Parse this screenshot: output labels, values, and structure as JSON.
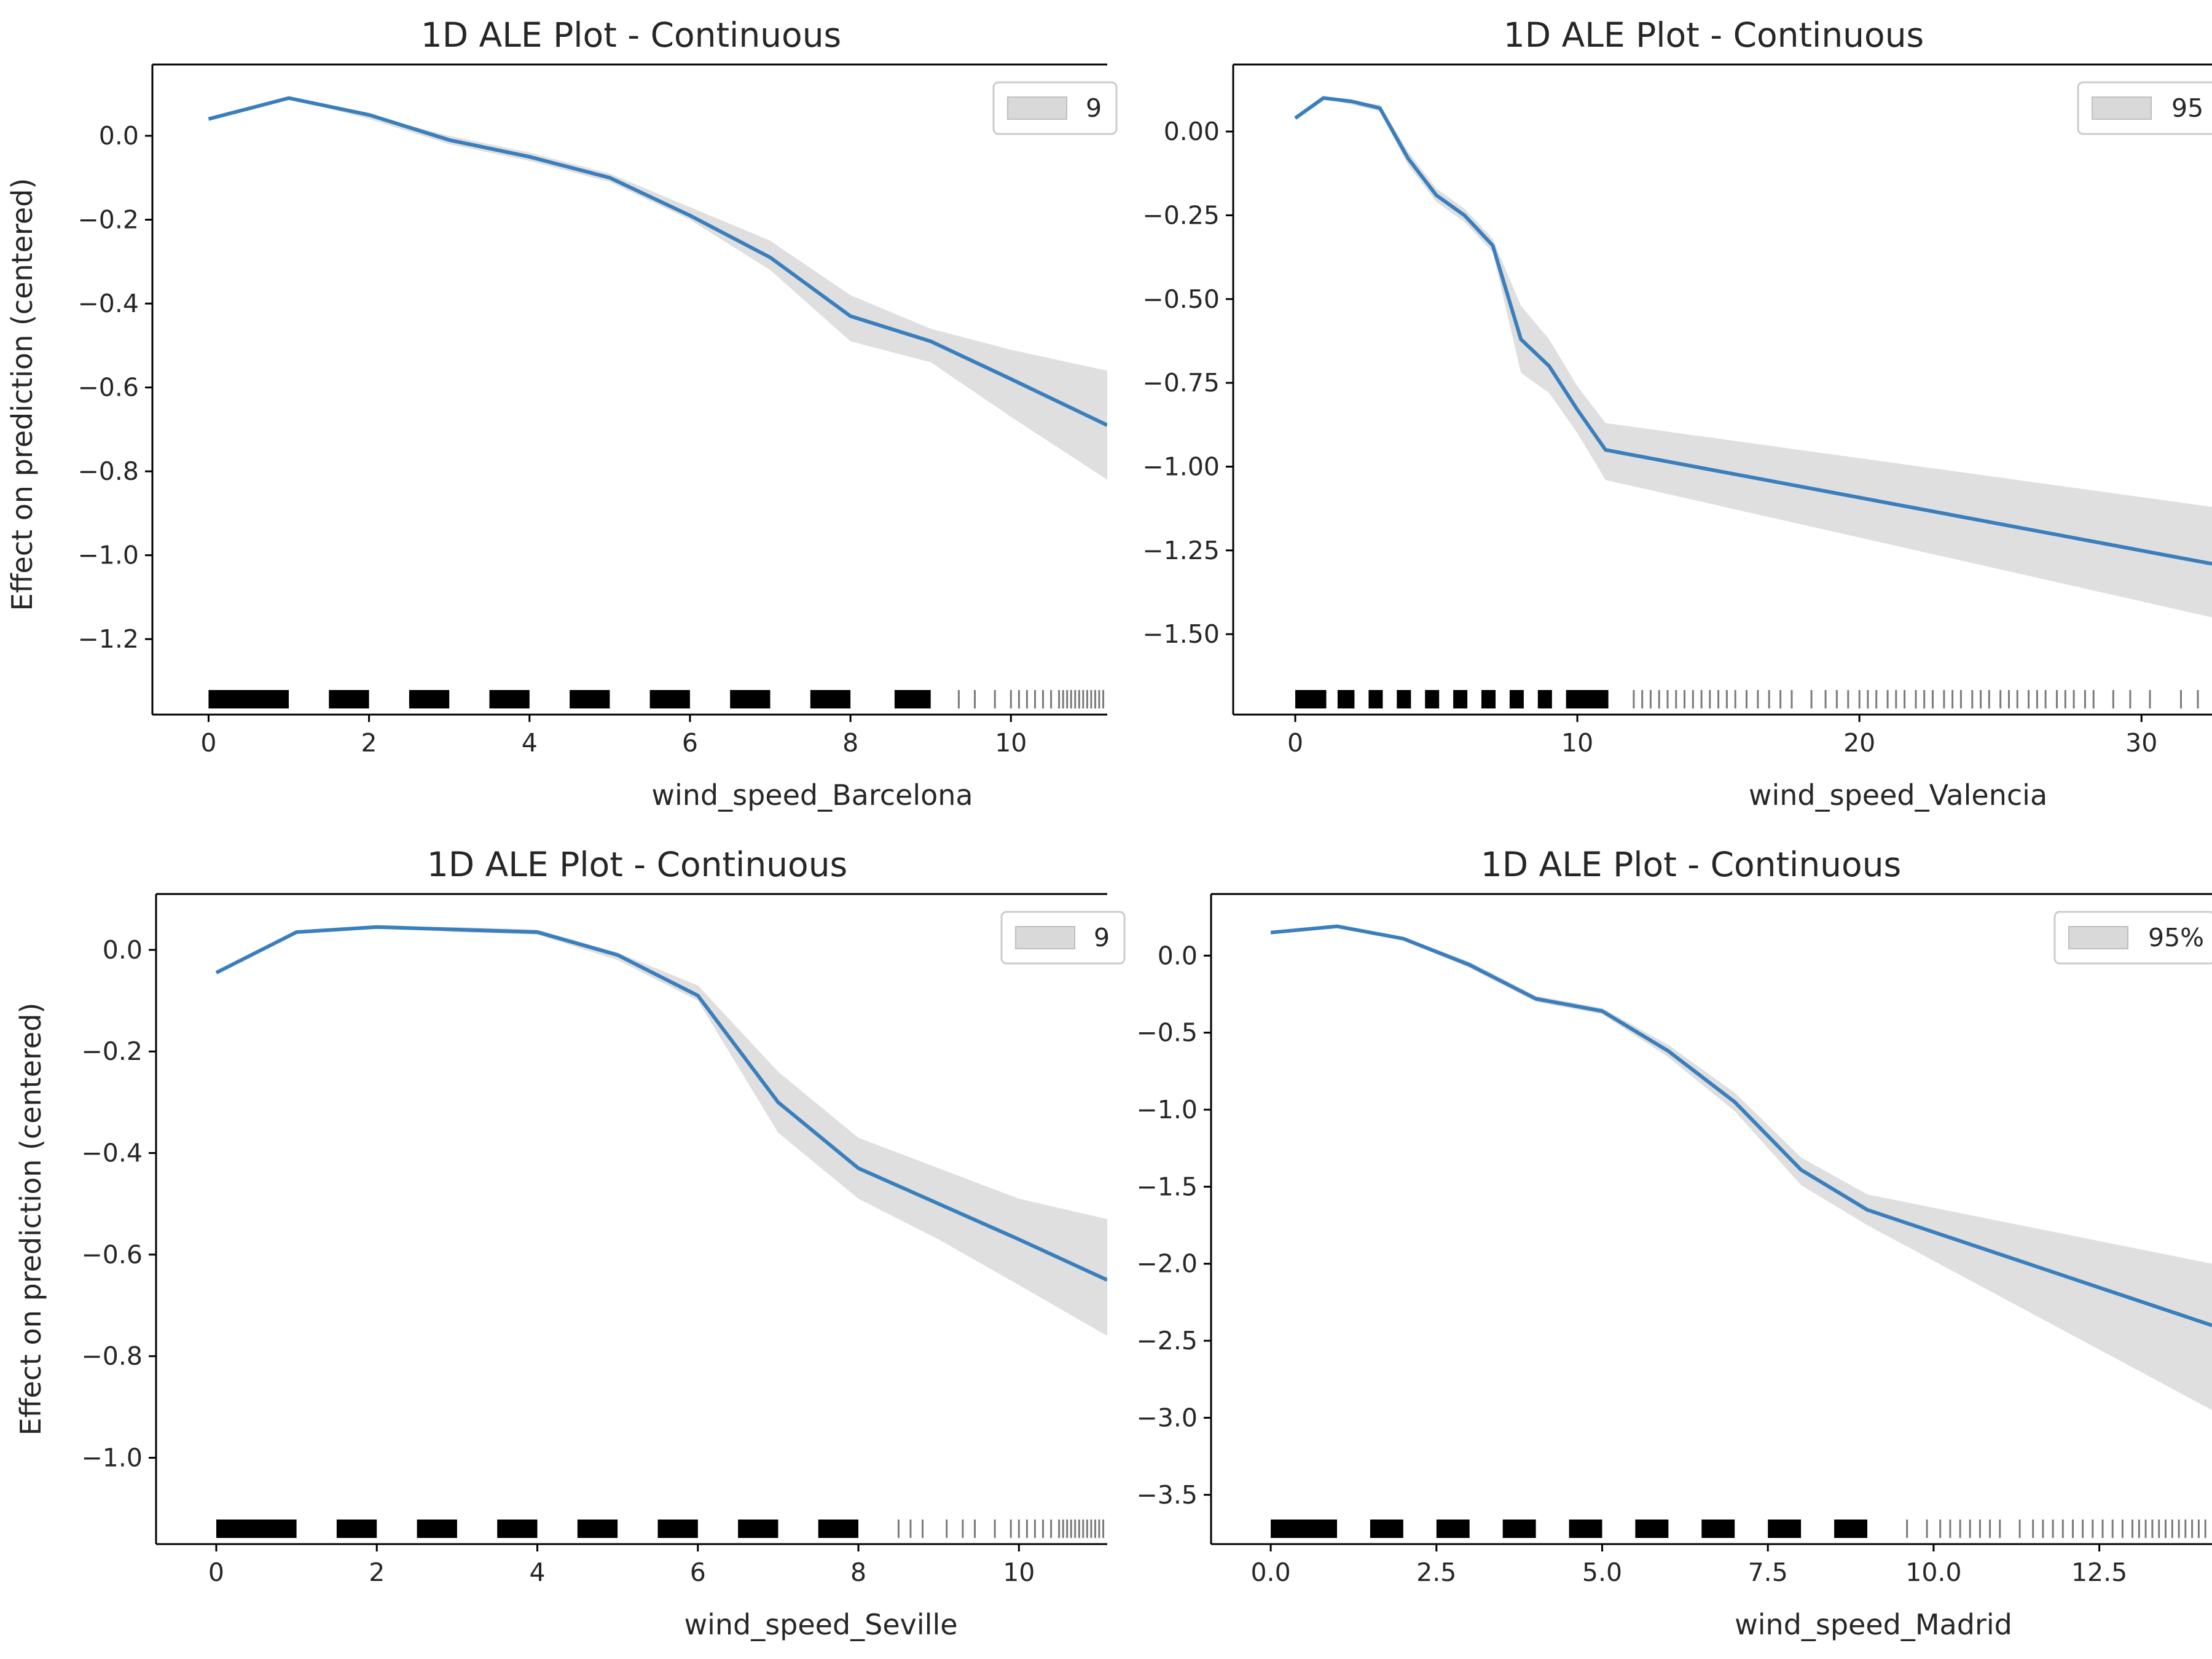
{
  "colors": {
    "line": "#3a7fbd",
    "band": "#d9d9d9",
    "rug_dense": "#000000",
    "rug_sparse": "#7a7a7a",
    "axis": "#000000"
  },
  "chart_data": [
    {
      "type": "line",
      "title": "1D ALE Plot - Continuous",
      "xlabel": "wind_speed_Barcelona",
      "ylabel": "Effect on prediction (centered)",
      "legend": {
        "placement": "top-right",
        "visible_text": "9"
      },
      "xlim": [
        -0.7,
        11.2
      ],
      "ylim": [
        -1.38,
        0.17
      ],
      "xticks": [
        0,
        2,
        4,
        6,
        8,
        10
      ],
      "yticks": [
        0.0,
        -0.2,
        -0.4,
        -0.6,
        -0.8,
        -1.0,
        -1.2
      ],
      "xtick_labels": [
        "0",
        "2",
        "4",
        "6",
        "8",
        "10"
      ],
      "ytick_labels": [
        "0.0",
        "−0.2",
        "−0.4",
        "−0.6",
        "−0.8",
        "−1.0",
        "−1.2"
      ],
      "series": [
        {
          "x": [
            0,
            1,
            2,
            3,
            4,
            5,
            6,
            7,
            8,
            9,
            10,
            11.2
          ],
          "y": [
            0.04,
            0.09,
            0.05,
            -0.01,
            -0.05,
            -0.1,
            -0.19,
            -0.29,
            -0.43,
            -0.49,
            -0.58,
            -0.69
          ]
        }
      ],
      "band": {
        "lower": [
          0.04,
          0.09,
          0.04,
          -0.02,
          -0.06,
          -0.11,
          -0.2,
          -0.32,
          -0.49,
          -0.54,
          -0.67,
          -0.82
        ],
        "upper": [
          0.04,
          0.09,
          0.05,
          0.0,
          -0.04,
          -0.09,
          -0.17,
          -0.25,
          -0.38,
          -0.46,
          -0.51,
          -0.56
        ]
      },
      "rug_dense": [
        [
          0,
          1
        ],
        [
          1.5,
          2.0
        ],
        [
          2.5,
          3.0
        ],
        [
          3.5,
          4.0
        ],
        [
          4.5,
          5.0
        ],
        [
          5.5,
          6.0
        ],
        [
          6.5,
          7.0
        ],
        [
          7.5,
          8.0
        ],
        [
          8.55,
          9.0
        ]
      ],
      "rug_sparse": [
        9.35,
        9.55,
        9.8,
        10.0,
        10.1,
        10.2,
        10.3,
        10.4,
        10.5,
        10.6,
        10.65,
        10.7,
        10.75,
        10.8,
        10.85,
        10.9,
        10.95,
        11.0,
        11.05,
        11.1,
        11.15
      ]
    },
    {
      "type": "line",
      "title": "1D ALE Plot - Continuous",
      "xlabel": "wind_speed_Valencia",
      "ylabel": "",
      "legend": {
        "placement": "top-right",
        "visible_text": "95"
      },
      "xlim": [
        -2.2,
        32.5
      ],
      "ylim": [
        -1.74,
        0.2
      ],
      "xticks": [
        0,
        10,
        20,
        30
      ],
      "yticks": [
        0.0,
        -0.25,
        -0.5,
        -0.75,
        -1.0,
        -1.25,
        -1.5
      ],
      "xtick_labels": [
        "0",
        "10",
        "20",
        "30"
      ],
      "ytick_labels": [
        "0.00",
        "−0.25",
        "−0.50",
        "−0.75",
        "−1.00",
        "−1.25",
        "−1.50"
      ],
      "series": [
        {
          "x": [
            0,
            1,
            2,
            3,
            4,
            5,
            6,
            7,
            8,
            9,
            10,
            11,
            32.5
          ],
          "y": [
            0.04,
            0.1,
            0.09,
            0.07,
            -0.08,
            -0.19,
            -0.25,
            -0.34,
            -0.62,
            -0.7,
            -0.83,
            -0.95,
            -1.29
          ]
        }
      ],
      "band": {
        "lower": [
          0.04,
          0.1,
          0.08,
          0.06,
          -0.1,
          -0.21,
          -0.27,
          -0.36,
          -0.72,
          -0.78,
          -0.9,
          -1.04,
          -1.45
        ]
      },
      "band_upper": [
        0.04,
        0.1,
        0.09,
        0.08,
        -0.06,
        -0.17,
        -0.23,
        -0.32,
        -0.52,
        -0.62,
        -0.76,
        -0.87,
        -1.12
      ],
      "rug_dense": [
        [
          0,
          1.1
        ],
        [
          1.5,
          2.1
        ],
        [
          2.6,
          3.1
        ],
        [
          3.6,
          4.1
        ],
        [
          4.6,
          5.1
        ],
        [
          5.6,
          6.1
        ],
        [
          6.6,
          7.1
        ],
        [
          7.6,
          8.1
        ],
        [
          8.6,
          9.1
        ],
        [
          9.6,
          11.1
        ]
      ],
      "rug_sparse": [
        12.0,
        12.3,
        12.6,
        12.9,
        13.2,
        13.5,
        13.8,
        14.1,
        14.4,
        14.7,
        15.0,
        15.3,
        15.6,
        16.0,
        16.4,
        16.8,
        17.2,
        17.6,
        18.3,
        18.8,
        19.2,
        19.6,
        20.0,
        20.3,
        20.6,
        21.0,
        21.3,
        21.6,
        22.0,
        22.3,
        22.6,
        23.0,
        23.3,
        23.6,
        24.0,
        24.3,
        24.6,
        25.0,
        25.3,
        25.6,
        26.0,
        26.3,
        26.6,
        27.0,
        27.3,
        27.6,
        28.0,
        28.3,
        29.0,
        29.6,
        30.3,
        31.4,
        32.0
      ]
    },
    {
      "type": "line",
      "title": "1D ALE Plot - Continuous",
      "xlabel": "wind_speed_Seville",
      "ylabel": "Effect on prediction (centered)",
      "legend": {
        "placement": "top-right",
        "visible_text": "9"
      },
      "xlim": [
        -0.75,
        11.1
      ],
      "ylim": [
        -1.17,
        0.11
      ],
      "xticks": [
        0,
        2,
        4,
        6,
        8,
        10
      ],
      "yticks": [
        0.0,
        -0.2,
        -0.4,
        -0.6,
        -0.8,
        -1.0
      ],
      "xtick_labels": [
        "0",
        "2",
        "4",
        "6",
        "8",
        "10"
      ],
      "ytick_labels": [
        "0.0",
        "−0.2",
        "−0.4",
        "−0.6",
        "−0.8",
        "−1.0"
      ],
      "series": [
        {
          "x": [
            0,
            1,
            2,
            3,
            4,
            5,
            6,
            7,
            8,
            9,
            10,
            11.1
          ],
          "y": [
            -0.045,
            0.035,
            0.045,
            0.04,
            0.035,
            -0.01,
            -0.09,
            -0.3,
            -0.43,
            -0.5,
            -0.57,
            -0.65
          ]
        }
      ],
      "band": {
        "lower": [
          -0.045,
          0.035,
          0.045,
          0.035,
          0.03,
          -0.02,
          -0.1,
          -0.36,
          -0.49,
          -0.57,
          -0.66,
          -0.76
        ]
      },
      "band_upper": [
        -0.045,
        0.035,
        0.045,
        0.045,
        0.04,
        -0.005,
        -0.07,
        -0.24,
        -0.37,
        -0.43,
        -0.49,
        -0.53
      ],
      "rug_dense": [
        [
          0,
          1.0
        ],
        [
          1.5,
          2.0
        ],
        [
          2.5,
          3.0
        ],
        [
          3.5,
          4.0
        ],
        [
          4.5,
          5.0
        ],
        [
          5.5,
          6.0
        ],
        [
          6.5,
          7.0
        ],
        [
          7.5,
          8.0
        ]
      ],
      "rug_sparse": [
        8.5,
        8.65,
        8.8,
        9.1,
        9.3,
        9.45,
        9.7,
        9.9,
        10.0,
        10.1,
        10.2,
        10.3,
        10.4,
        10.5,
        10.55,
        10.6,
        10.65,
        10.7,
        10.75,
        10.8,
        10.85,
        10.9,
        10.95,
        11.0,
        11.05
      ]
    },
    {
      "type": "line",
      "title": "1D ALE Plot - Continuous",
      "xlabel": "wind_speed_Madrid",
      "ylabel": "",
      "legend": {
        "placement": "top-right",
        "visible_text": "95%"
      },
      "xlim": [
        -0.9,
        14.2
      ],
      "ylim": [
        -3.82,
        0.4
      ],
      "xticks": [
        0.0,
        2.5,
        5.0,
        7.5,
        10.0,
        12.5
      ],
      "yticks": [
        0.0,
        -0.5,
        -1.0,
        -1.5,
        -2.0,
        -2.5,
        -3.0,
        -3.5
      ],
      "xtick_labels": [
        "0.0",
        "2.5",
        "5.0",
        "7.5",
        "10.0",
        "12.5"
      ],
      "ytick_labels": [
        "0.0",
        "−0.5",
        "−1.0",
        "−1.5",
        "−2.0",
        "−2.5",
        "−3.0",
        "−3.5"
      ],
      "series": [
        {
          "x": [
            0,
            1,
            2,
            3,
            4,
            5,
            6,
            7,
            8,
            9,
            14.2
          ],
          "y": [
            0.15,
            0.19,
            0.11,
            -0.06,
            -0.28,
            -0.36,
            -0.62,
            -0.95,
            -1.39,
            -1.65,
            -2.4
          ]
        }
      ],
      "band": {
        "lower": [
          0.15,
          0.19,
          0.1,
          -0.08,
          -0.3,
          -0.38,
          -0.66,
          -1.01,
          -1.49,
          -1.75,
          -2.95
        ]
      },
      "band_upper": [
        0.15,
        0.19,
        0.12,
        -0.04,
        -0.26,
        -0.34,
        -0.58,
        -0.89,
        -1.31,
        -1.55,
        -2.0
      ],
      "rug_dense": [
        [
          0,
          1.0
        ],
        [
          1.5,
          2.0
        ],
        [
          2.5,
          3.0
        ],
        [
          3.5,
          4.0
        ],
        [
          4.5,
          5.0
        ],
        [
          5.5,
          6.0
        ],
        [
          6.5,
          7.0
        ],
        [
          7.5,
          8.0
        ],
        [
          8.5,
          9.0
        ]
      ],
      "rug_sparse": [
        9.6,
        9.9,
        10.1,
        10.25,
        10.4,
        10.55,
        10.7,
        10.85,
        11.0,
        11.3,
        11.5,
        11.65,
        11.8,
        11.95,
        12.1,
        12.25,
        12.4,
        12.55,
        12.7,
        12.85,
        13.0,
        13.1,
        13.2,
        13.3,
        13.4,
        13.5,
        13.6,
        13.7,
        13.8,
        13.9,
        14.0,
        14.1
      ]
    }
  ]
}
